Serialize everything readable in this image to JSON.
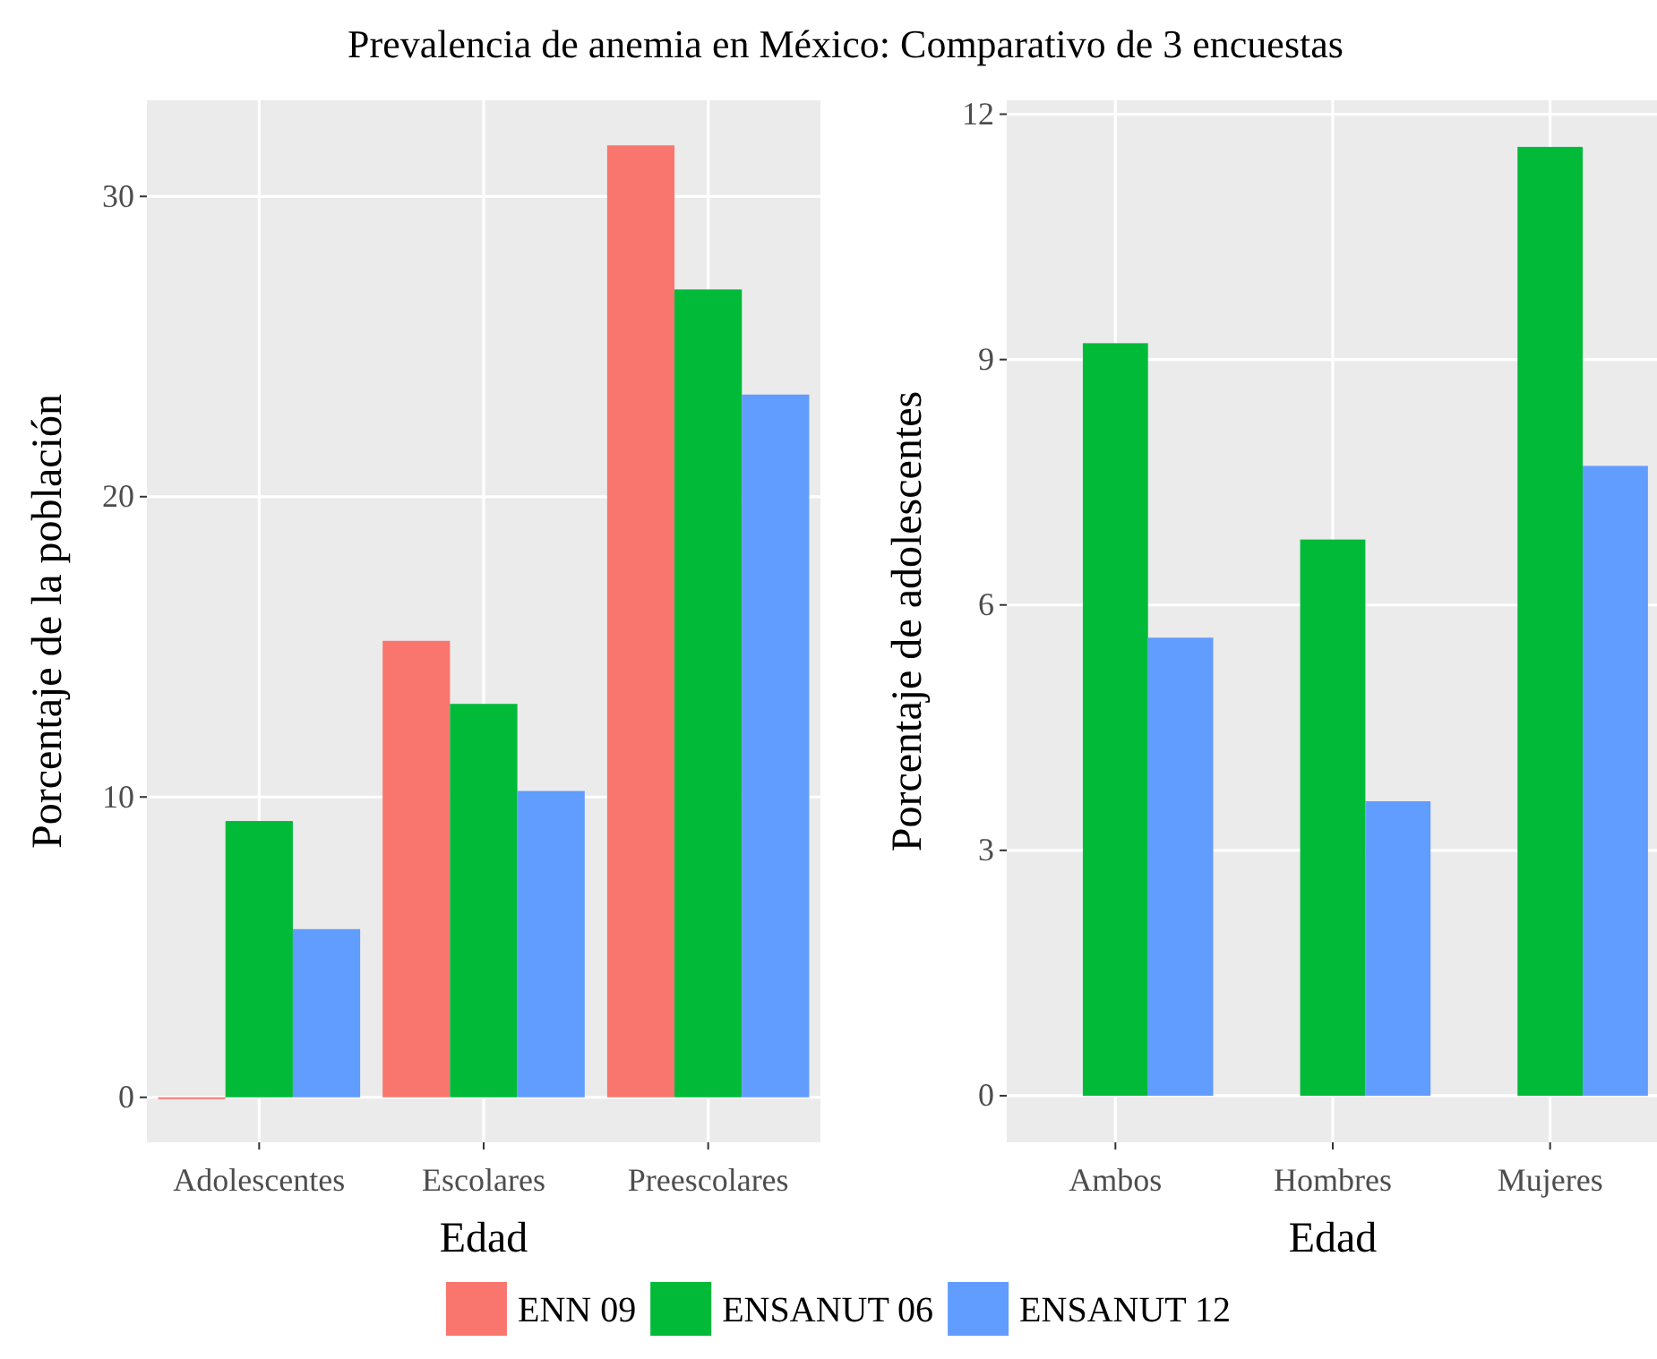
{
  "chart_data": [
    {
      "type": "bar",
      "title": "Prevalencia de anemia en México: Comparativo de 3 encuestas",
      "xlabel": "Edad",
      "ylabel": "Porcentaje de la población",
      "categories": [
        "Adolescentes",
        "Escolares",
        "Preescolares"
      ],
      "series": [
        {
          "name": "ENN 09",
          "color": "#f8766d",
          "values": [
            0,
            15.2,
            31.7
          ]
        },
        {
          "name": "ENSANUT 06",
          "color": "#00ba38",
          "values": [
            9.2,
            13.1,
            26.9
          ]
        },
        {
          "name": "ENSANUT 12",
          "color": "#619cff",
          "values": [
            5.6,
            10.2,
            23.4
          ]
        }
      ],
      "ylim": [
        -1.5,
        33.2
      ],
      "yticks": [
        0,
        10,
        20,
        30
      ],
      "grid": true,
      "legend": "bottom"
    },
    {
      "type": "bar",
      "xlabel": "Edad",
      "ylabel": "Porcentaje de adolescentes",
      "categories": [
        "Ambos",
        "Hombres",
        "Mujeres"
      ],
      "series": [
        {
          "color": "#00ba38",
          "values": [
            9.2,
            6.8,
            11.6
          ]
        },
        {
          "color": "#619cff",
          "values": [
            5.6,
            3.6,
            7.7
          ]
        }
      ],
      "ylim": [
        -0.57,
        12.17
      ],
      "yticks": [
        0,
        3,
        6,
        9,
        12
      ],
      "grid": true
    }
  ]
}
